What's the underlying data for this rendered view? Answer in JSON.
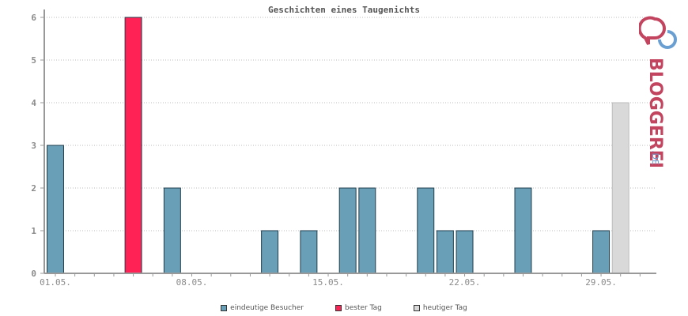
{
  "colors": {
    "visitor": "#6a9fb8",
    "best": "#ff2255",
    "today": "#d9d9d9",
    "grid": "#bbbbbb",
    "axis": "#999999",
    "logo_pink": "#c2445f",
    "logo_blue": "#6a9fd2"
  },
  "logo": {
    "brand": "BLOGGEREI",
    "tld": ".DE"
  },
  "legend": {
    "visitors": "eindeutige Besucher",
    "best": "bester Tag",
    "today": "heutiger Tag"
  },
  "chart_data": {
    "type": "bar",
    "title": "Geschichten eines Taugenichts",
    "xlabel": "",
    "ylabel": "",
    "ylim": [
      0,
      6
    ],
    "yticks": [
      0,
      1,
      2,
      3,
      4,
      5,
      6
    ],
    "grid": true,
    "legend_position": "bottom",
    "categories": [
      "01.05.",
      "02.05.",
      "03.05.",
      "04.05.",
      "05.05.",
      "06.05.",
      "07.05.",
      "08.05.",
      "09.05.",
      "10.05.",
      "11.05.",
      "12.05.",
      "13.05.",
      "14.05.",
      "15.05.",
      "16.05.",
      "17.05.",
      "18.05.",
      "19.05.",
      "20.05.",
      "21.05.",
      "22.05.",
      "23.05.",
      "24.05.",
      "25.05.",
      "26.05.",
      "27.05.",
      "28.05.",
      "29.05.",
      "30.05.",
      "31.05."
    ],
    "xtick_labels": [
      "01.05.",
      "08.05.",
      "15.05.",
      "22.05.",
      "29.05."
    ],
    "values": [
      3,
      0,
      0,
      0,
      6,
      0,
      2,
      0,
      0,
      0,
      0,
      1,
      0,
      1,
      0,
      2,
      2,
      0,
      0,
      2,
      1,
      1,
      0,
      0,
      2,
      0,
      0,
      0,
      1,
      4,
      0
    ],
    "best_day": "05.05.",
    "today": "30.05."
  }
}
